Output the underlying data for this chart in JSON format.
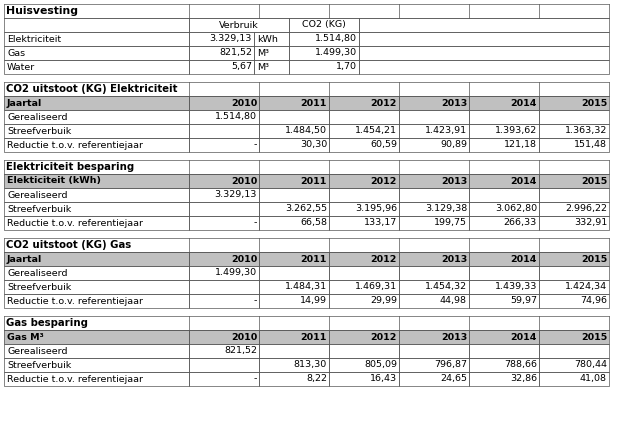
{
  "title_main": "Huisvesting",
  "section1_rows": [
    [
      "Elektriciteit",
      "3.329,13",
      "kWh",
      "1.514,80"
    ],
    [
      "Gas",
      "821,52",
      "M³",
      "1.499,30"
    ],
    [
      "Water",
      "5,67",
      "M³",
      "1,70"
    ]
  ],
  "section2_title": "CO2 uitstoot (KG) Elektriciteit",
  "section2_header": [
    "Jaartal",
    "2010",
    "2011",
    "2012",
    "2013",
    "2014",
    "2015"
  ],
  "section2_rows": [
    [
      "Gerealiseerd",
      "1.514,80",
      "",
      "",
      "",
      "",
      ""
    ],
    [
      "Streefverbuik",
      "",
      "1.484,50",
      "1.454,21",
      "1.423,91",
      "1.393,62",
      "1.363,32"
    ],
    [
      "Reductie t.o.v. referentiejaar",
      "-",
      "30,30",
      "60,59",
      "90,89",
      "121,18",
      "151,48"
    ]
  ],
  "section3_title": "Elektriciteit besparing",
  "section3_header": [
    "Elekticiteit (kWh)",
    "2010",
    "2011",
    "2012",
    "2013",
    "2014",
    "2015"
  ],
  "section3_rows": [
    [
      "Gerealiseerd",
      "3.329,13",
      "",
      "",
      "",
      "",
      ""
    ],
    [
      "Streefverbuik",
      "",
      "3.262,55",
      "3.195,96",
      "3.129,38",
      "3.062,80",
      "2.996,22"
    ],
    [
      "Reductie t.o.v. referentiejaar",
      "-",
      "66,58",
      "133,17",
      "199,75",
      "266,33",
      "332,91"
    ]
  ],
  "section4_title": "CO2 uitstoot (KG) Gas",
  "section4_header": [
    "Jaartal",
    "2010",
    "2011",
    "2012",
    "2013",
    "2014",
    "2015"
  ],
  "section4_rows": [
    [
      "Gerealiseerd",
      "1.499,30",
      "",
      "",
      "",
      "",
      ""
    ],
    [
      "Streefverbuik",
      "",
      "1.484,31",
      "1.469,31",
      "1.454,32",
      "1.439,33",
      "1.424,34"
    ],
    [
      "Reductie t.o.v. referentiejaar",
      "-",
      "14,99",
      "29,99",
      "44,98",
      "59,97",
      "74,96"
    ]
  ],
  "section5_title": "Gas besparing",
  "section5_header": [
    "Gas M³",
    "2010",
    "2011",
    "2012",
    "2013",
    "2014",
    "2015"
  ],
  "section5_rows": [
    [
      "Gerealiseerd",
      "821,52",
      "",
      "",
      "",
      "",
      ""
    ],
    [
      "Streefverbuik",
      "",
      "813,30",
      "805,09",
      "796,87",
      "788,66",
      "780,44"
    ],
    [
      "Reductie t.o.v. referentiejaar",
      "-",
      "8,22",
      "16,43",
      "24,65",
      "32,86",
      "41,08"
    ]
  ],
  "header_bg": "#c0c0c0",
  "white_bg": "#ffffff",
  "border_color": "#555555",
  "text_color": "#000000",
  "font_size": 6.8,
  "fig_w": 6.43,
  "fig_h": 4.37,
  "dpi": 100
}
